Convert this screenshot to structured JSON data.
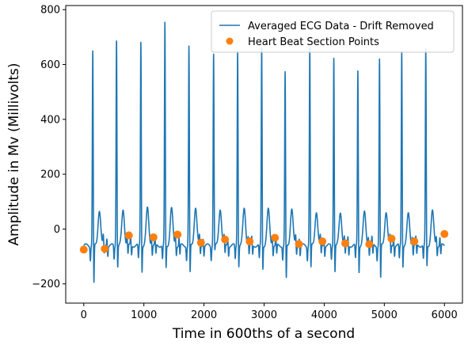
{
  "chart_data": {
    "type": "line",
    "title": "",
    "xlabel": "Time in 600ths of a second",
    "ylabel": "Amplitude in Mv (Millivolts)",
    "xlim": [
      -300,
      6300
    ],
    "ylim": [
      -270,
      815
    ],
    "x_ticks": [
      0,
      1000,
      2000,
      3000,
      4000,
      5000,
      6000
    ],
    "y_ticks": [
      -200,
      0,
      200,
      400,
      600,
      800
    ],
    "grid": false,
    "legend_position": "top-right",
    "colors": {
      "line": "#1f77b4",
      "points": "#ff7f0e"
    },
    "series": [
      {
        "name": "Averaged ECG Data - Drift Removed",
        "kind": "line",
        "beat_peaks_x": [
          150,
          545,
          950,
          1350,
          1750,
          2160,
          2560,
          2960,
          3350,
          3760,
          4160,
          4560,
          4920,
          5290,
          5690
        ],
        "beat_peaks_y": [
          650,
          700,
          685,
          750,
          665,
          640,
          655,
          660,
          570,
          660,
          630,
          580,
          620,
          655,
          655
        ],
        "beat_troughs_y": [
          -220,
          -155,
          -170,
          -160,
          -180,
          -90,
          -150,
          -160,
          -200,
          -160,
          -170,
          -170,
          -200,
          -150,
          -150
        ],
        "t_wave_y": [
          70,
          70,
          75,
          75,
          80,
          75,
          75,
          70,
          75,
          65,
          60,
          60,
          65,
          55,
          65
        ]
      },
      {
        "name": "Heart Beat Section Points",
        "kind": "scatter",
        "x": [
          0,
          350,
          750,
          1160,
          1560,
          1950,
          2350,
          2760,
          3180,
          3580,
          3970,
          4350,
          4750,
          5120,
          5500,
          6000
        ],
        "y": [
          -75,
          -72,
          -23,
          -30,
          -20,
          -50,
          -38,
          -45,
          -32,
          -55,
          -45,
          -52,
          -55,
          -35,
          -45,
          -18
        ]
      }
    ]
  }
}
